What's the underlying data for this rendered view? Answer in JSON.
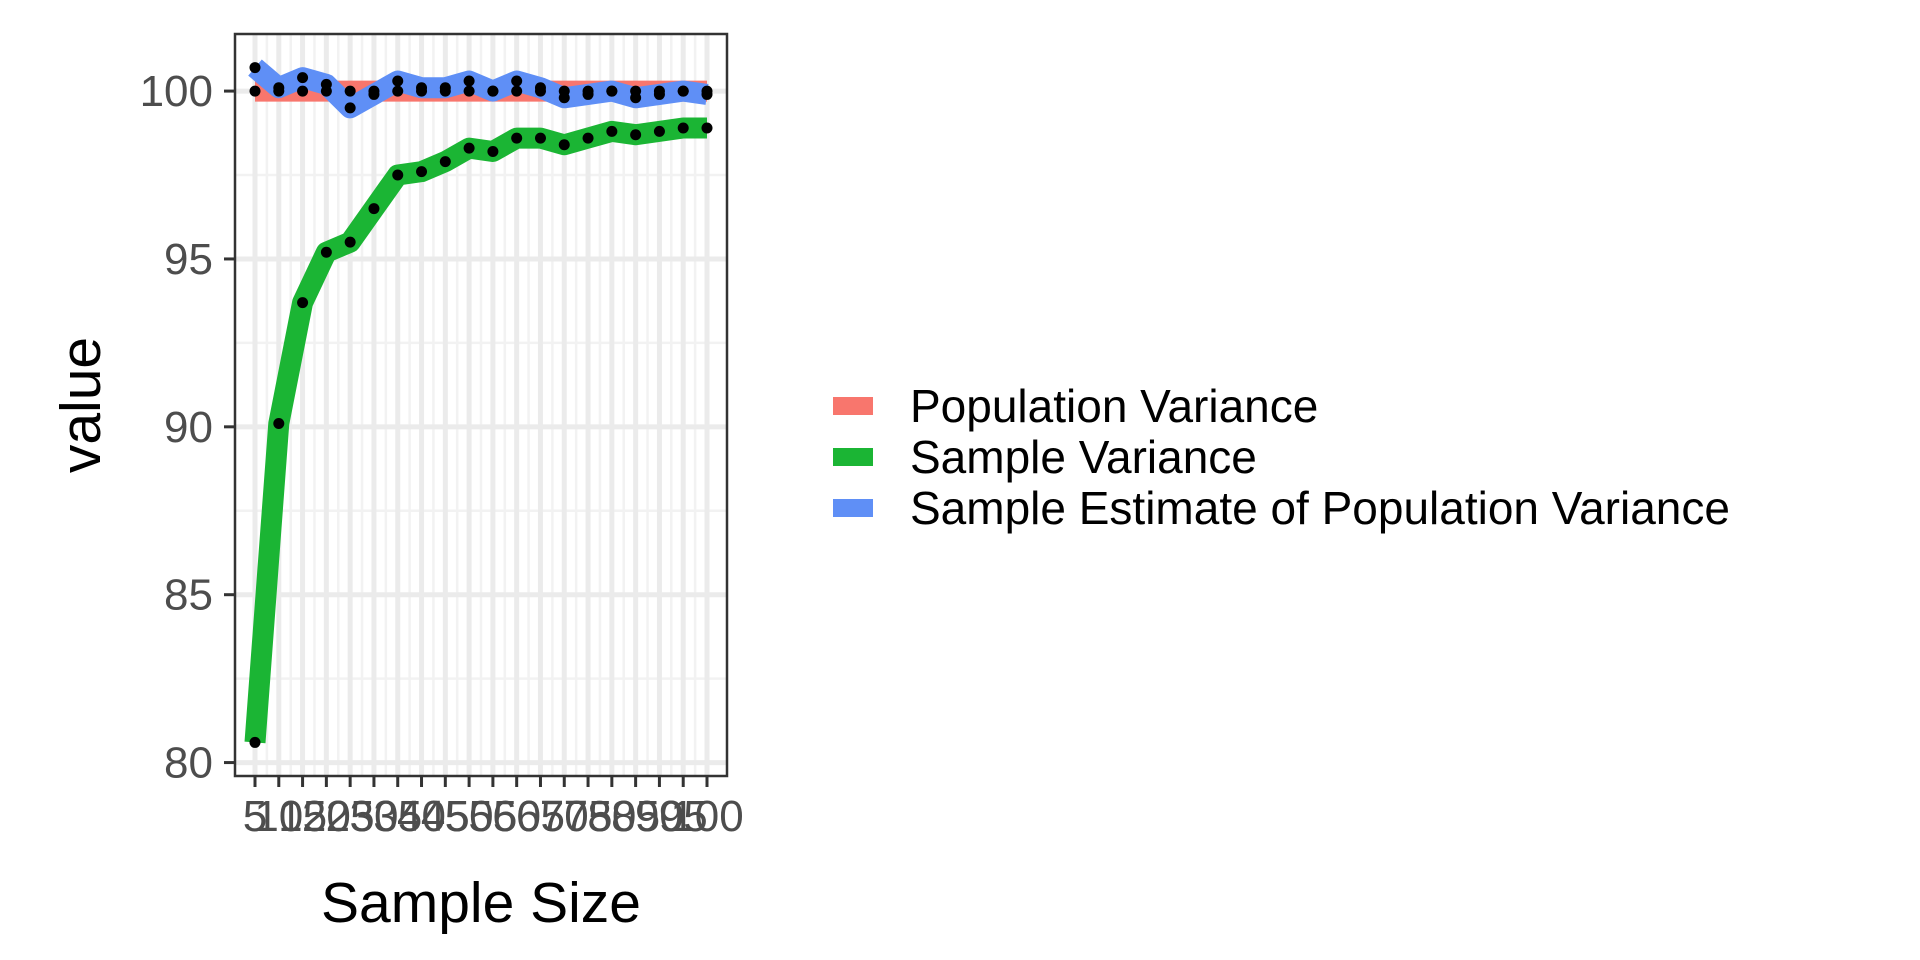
{
  "chart_data": {
    "type": "line",
    "title": "",
    "xlabel": "Sample Size",
    "ylabel": "value",
    "x_ticks": [
      "5",
      "10",
      "15",
      "20",
      "25",
      "30",
      "35",
      "40",
      "45",
      "50",
      "55",
      "60",
      "65",
      "70",
      "75",
      "80",
      "85",
      "90",
      "95",
      "100"
    ],
    "y_ticks": [
      "80",
      "85",
      "90",
      "95",
      "100"
    ],
    "ylim": [
      79.6,
      101.7
    ],
    "grid": true,
    "legend_position": "right",
    "series": [
      {
        "name": "Population Variance",
        "color": "#F8766D",
        "values": [
          100.0,
          100.0,
          100.0,
          100.0,
          100.0,
          100.0,
          100.0,
          100.0,
          100.0,
          100.0,
          100.0,
          100.0,
          100.0,
          100.0,
          100.0,
          100.0,
          100.0,
          100.0,
          100.0,
          100.0
        ]
      },
      {
        "name": "Sample Variance",
        "color": "#1BB534",
        "values": [
          80.6,
          90.1,
          93.7,
          95.2,
          95.5,
          96.5,
          97.5,
          97.6,
          97.9,
          98.3,
          98.2,
          98.6,
          98.6,
          98.4,
          98.6,
          98.8,
          98.7,
          98.8,
          98.9,
          98.9
        ]
      },
      {
        "name": "Sample Estimate of Population Variance",
        "color": "#5F8FF6",
        "values": [
          100.7,
          100.1,
          100.4,
          100.2,
          99.5,
          99.9,
          100.3,
          100.1,
          100.1,
          100.3,
          100.0,
          100.3,
          100.1,
          99.8,
          99.9,
          100.0,
          99.8,
          99.9,
          100.0,
          99.9
        ]
      }
    ]
  }
}
